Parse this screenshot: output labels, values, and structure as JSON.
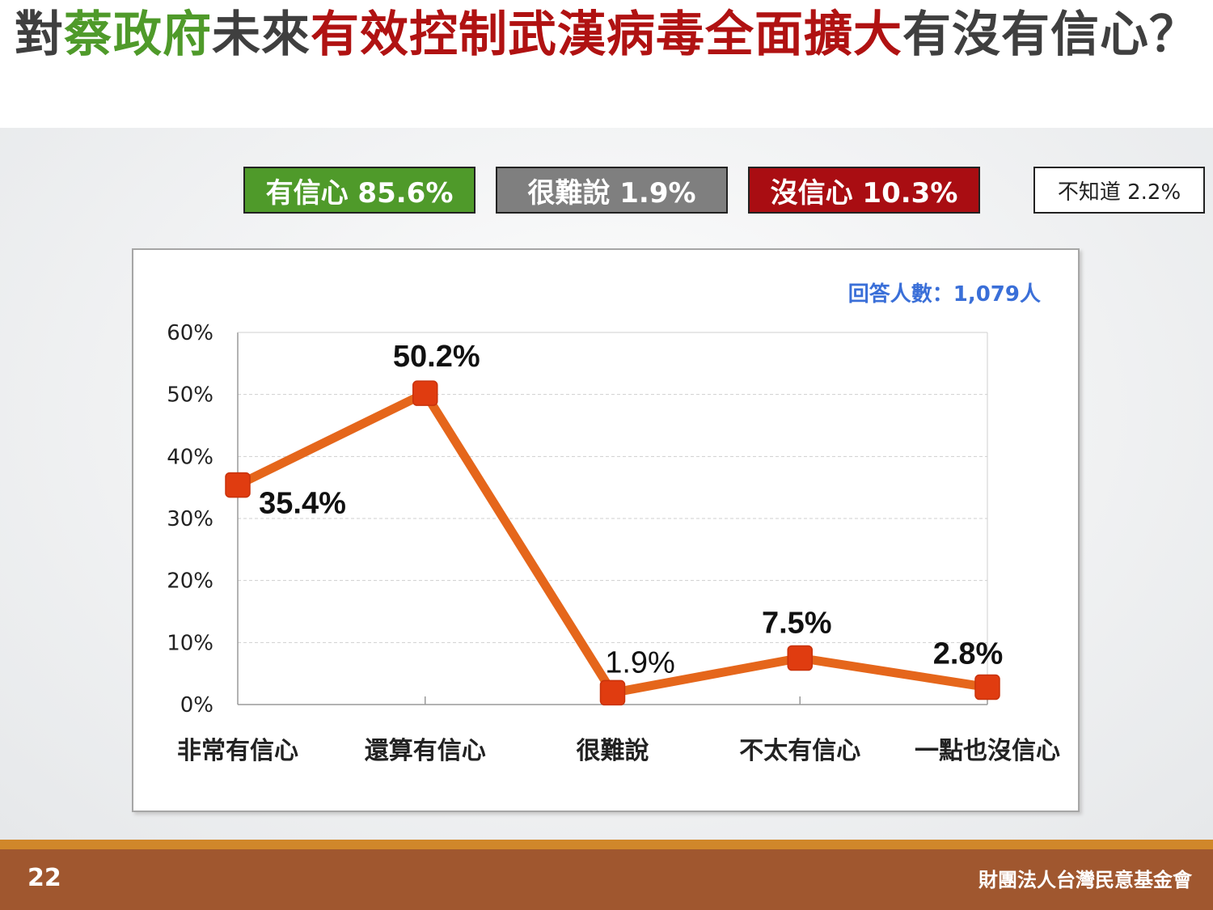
{
  "title": {
    "p1": "對",
    "p2": "蔡政府",
    "p3": "未來",
    "p4": "有效控制武漢病毒全面擴大",
    "p5": "有沒有信心？"
  },
  "summary": [
    {
      "label": "有信心 85.6%",
      "color": "#4f9a2a"
    },
    {
      "label": "很難說 1.9%",
      "color": "#7f7f7f"
    },
    {
      "label": "沒信心 10.3%",
      "color": "#a90d12"
    },
    {
      "label": "不知道 2.2%",
      "color": "#ffffff"
    }
  ],
  "chart_data": {
    "type": "line",
    "categories": [
      "非常有信心",
      "還算有信心",
      "很難說",
      "不太有信心",
      "一點也沒信心"
    ],
    "values": [
      35.4,
      50.2,
      1.9,
      7.5,
      2.8
    ],
    "data_labels": [
      "35.4%",
      "50.2%",
      "1.9%",
      "7.5%",
      "2.8%"
    ],
    "y_ticks": [
      "0%",
      "10%",
      "20%",
      "30%",
      "40%",
      "50%",
      "60%"
    ],
    "ylim": [
      0,
      60
    ],
    "grid": true,
    "note": "回答人數：1,079人",
    "line_color": "#e5661b",
    "marker_color": "#e03c10",
    "note_color": "#3a6fd8"
  },
  "footer": {
    "page": "22",
    "org": "財團法人台灣民意基金會"
  }
}
